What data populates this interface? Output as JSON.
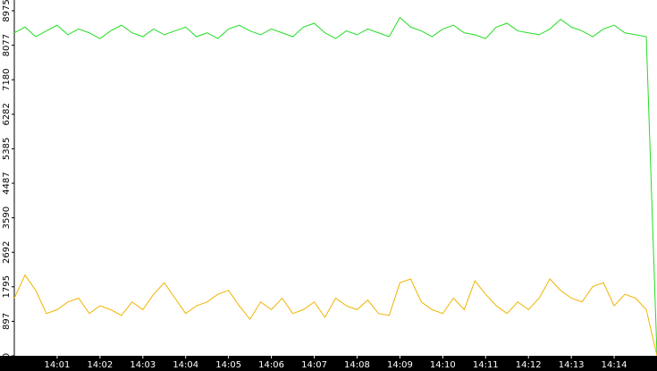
{
  "chart_data": {
    "type": "line",
    "x": [
      0,
      0.25,
      0.5,
      0.75,
      1,
      1.25,
      1.5,
      1.75,
      2,
      2.25,
      2.5,
      2.75,
      3,
      3.25,
      3.5,
      3.75,
      4,
      4.25,
      4.5,
      4.75,
      5,
      5.25,
      5.5,
      5.75,
      6,
      6.25,
      6.5,
      6.75,
      7,
      7.25,
      7.5,
      7.75,
      8,
      8.25,
      8.5,
      8.75,
      9,
      9.25,
      9.5,
      9.75,
      10,
      10.25,
      10.5,
      10.75,
      11,
      11.25,
      11.5,
      11.75,
      12,
      12.25,
      12.5,
      12.75,
      13,
      13.25,
      13.5,
      13.75,
      14,
      14.25,
      14.5,
      14.75,
      15
    ],
    "series": [
      {
        "color": "#22dd22",
        "values": [
          8400,
          8550,
          8300,
          8450,
          8600,
          8350,
          8500,
          8400,
          8250,
          8450,
          8600,
          8400,
          8300,
          8500,
          8350,
          8450,
          8550,
          8300,
          8400,
          8250,
          8500,
          8600,
          8450,
          8350,
          8500,
          8400,
          8300,
          8550,
          8650,
          8400,
          8250,
          8450,
          8350,
          8500,
          8400,
          8300,
          8800,
          8550,
          8450,
          8300,
          8500,
          8600,
          8400,
          8350,
          8250,
          8550,
          8650,
          8450,
          8400,
          8350,
          8500,
          8750,
          8550,
          8450,
          8300,
          8500,
          8600,
          8400,
          8350,
          8300,
          0
        ]
      },
      {
        "color": "#f0b400",
        "values": [
          1500,
          2100,
          1700,
          1100,
          1200,
          1400,
          1500,
          1100,
          1300,
          1200,
          1050,
          1400,
          1200,
          1600,
          1900,
          1500,
          1100,
          1300,
          1400,
          1600,
          1700,
          1300,
          950,
          1400,
          1200,
          1500,
          1100,
          1200,
          1400,
          1000,
          1500,
          1300,
          1200,
          1450,
          1100,
          1050,
          1900,
          2000,
          1400,
          1200,
          1100,
          1500,
          1200,
          1950,
          1600,
          1300,
          1100,
          1400,
          1200,
          1500,
          2000,
          1700,
          1500,
          1400,
          1800,
          1900,
          1300,
          1600,
          1500,
          1200,
          0
        ]
      }
    ],
    "xlim": [
      0,
      15
    ],
    "xticks": [
      {
        "value": 1,
        "label": "14:01"
      },
      {
        "value": 2,
        "label": "14:02"
      },
      {
        "value": 3,
        "label": "14:03"
      },
      {
        "value": 4,
        "label": "14:04"
      },
      {
        "value": 5,
        "label": "14:05"
      },
      {
        "value": 6,
        "label": "14:06"
      },
      {
        "value": 7,
        "label": "14:07"
      },
      {
        "value": 8,
        "label": "14:08"
      },
      {
        "value": 9,
        "label": "14:09"
      },
      {
        "value": 10,
        "label": "14:10"
      },
      {
        "value": 11,
        "label": "14:11"
      },
      {
        "value": 12,
        "label": "14:12"
      },
      {
        "value": 13,
        "label": "14:13"
      },
      {
        "value": 14,
        "label": "14:14"
      }
    ],
    "ylim": [
      0,
      8975
    ],
    "yticks": [
      0,
      897,
      1795,
      2692,
      3590,
      4487,
      5385,
      6282,
      7180,
      8077,
      8975
    ]
  }
}
